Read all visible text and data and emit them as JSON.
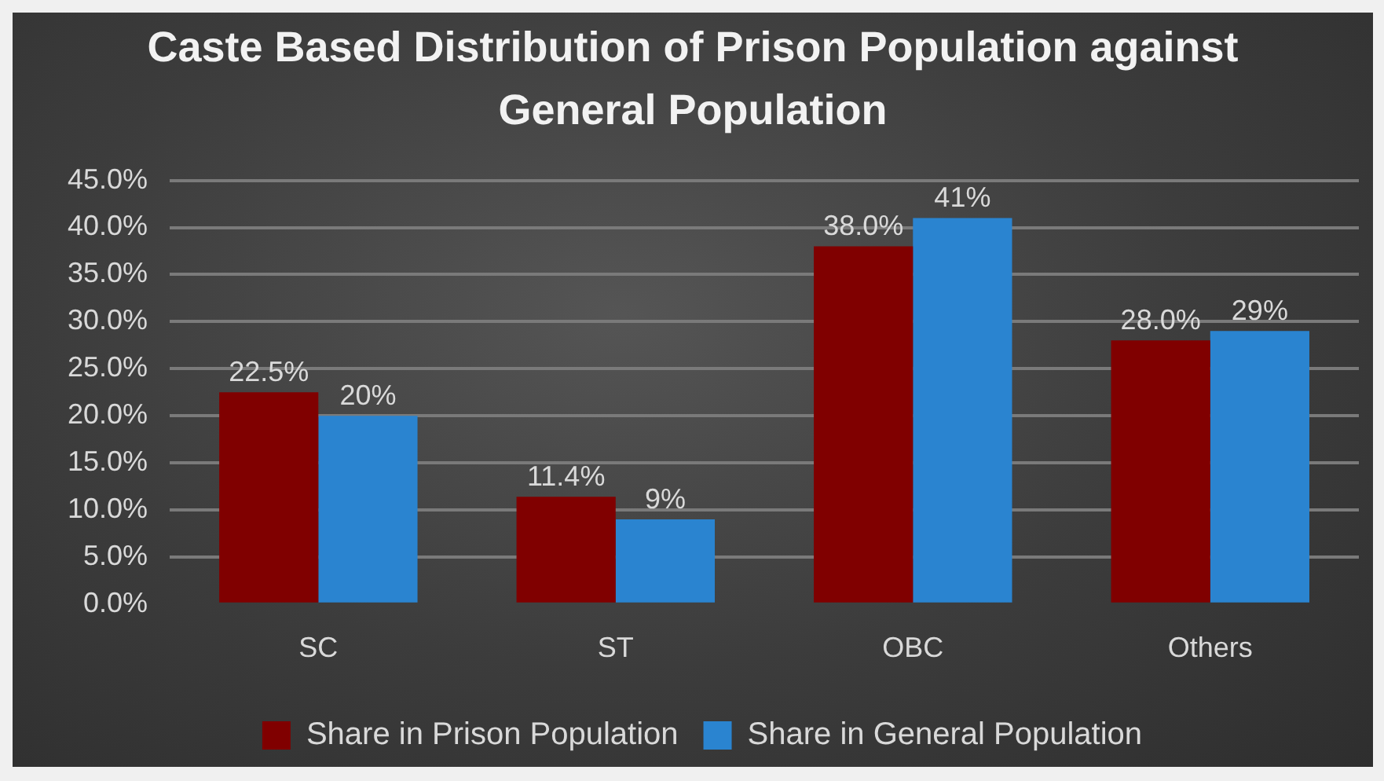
{
  "chart_data": {
    "type": "bar",
    "title": "Caste Based Distribution of Prison Population against General Population",
    "categories": [
      "SC",
      "ST",
      "OBC",
      "Others"
    ],
    "series": [
      {
        "name": "Share in Prison Population",
        "color": "#800000",
        "values": [
          22.5,
          11.4,
          38.0,
          28.0
        ],
        "value_labels": [
          "22.5%",
          "11.4%",
          "38.0%",
          "28.0%"
        ]
      },
      {
        "name": "Share in General Population",
        "color": "#2a84d0",
        "values": [
          20,
          9,
          41,
          29
        ],
        "value_labels": [
          "20%",
          "9%",
          "41%",
          "29%"
        ]
      }
    ],
    "ylim": [
      0,
      45
    ],
    "yticks": [
      {
        "value": 0,
        "label": "0.0%"
      },
      {
        "value": 5,
        "label": "5.0%"
      },
      {
        "value": 10,
        "label": "10.0%"
      },
      {
        "value": 15,
        "label": "15.0%"
      },
      {
        "value": 20,
        "label": "20.0%"
      },
      {
        "value": 25,
        "label": "25.0%"
      },
      {
        "value": 30,
        "label": "30.0%"
      },
      {
        "value": 35,
        "label": "35.0%"
      },
      {
        "value": 40,
        "label": "40.0%"
      },
      {
        "value": 45,
        "label": "45.0%"
      }
    ],
    "grid": "y",
    "legend": "bottom"
  }
}
